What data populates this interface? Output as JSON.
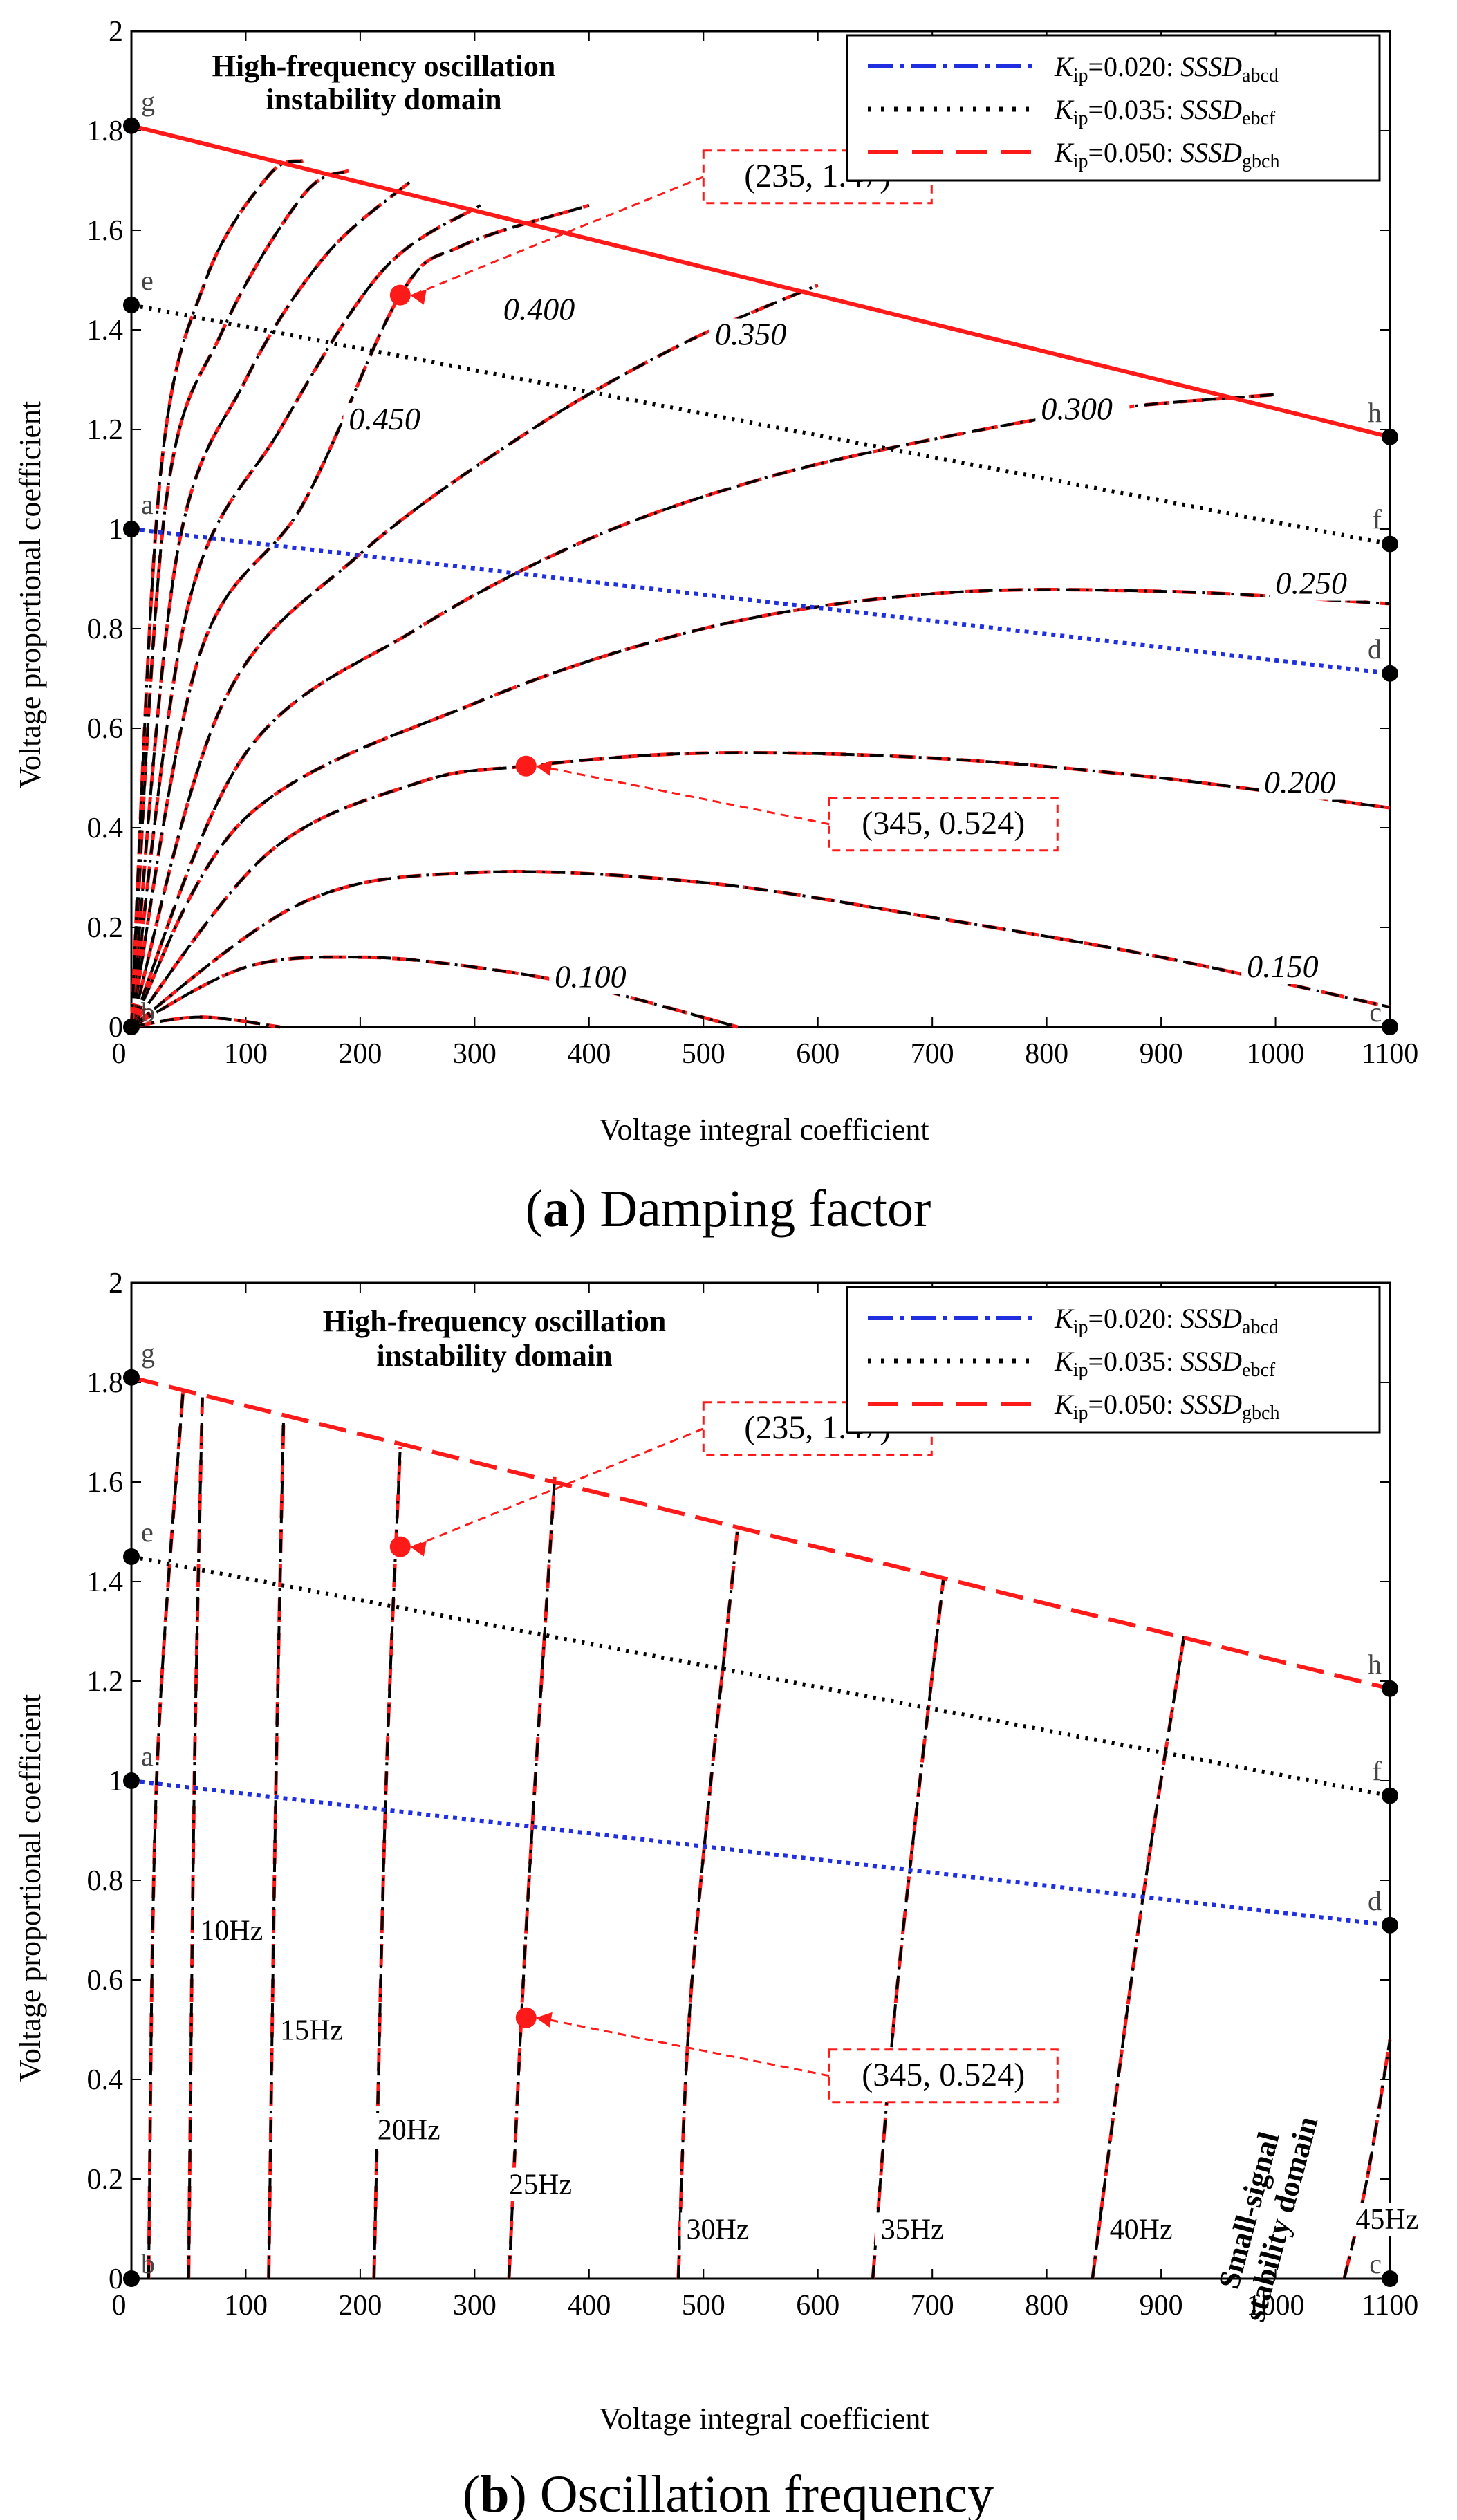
{
  "colors": {
    "blue": "#1f2fe0",
    "black": "#000000",
    "red": "#ff1a1a"
  },
  "chart_data": [
    {
      "type": "line",
      "panel": "a",
      "caption_letter": "a",
      "caption_text": " Damping factor",
      "xlabel": "Voltage integral coefficient",
      "ylabel": "Voltage proportional coefficient",
      "xlim": [
        0,
        1100
      ],
      "ylim": [
        0,
        2
      ],
      "x_ticks": [
        "0",
        "100",
        "200",
        "300",
        "400",
        "500",
        "600",
        "700",
        "800",
        "900",
        "1000",
        "1100"
      ],
      "y_ticks": [
        "0",
        "0.2",
        "0.4",
        "0.6",
        "0.8",
        "1",
        "1.2",
        "1.4",
        "1.6",
        "1.8",
        "2"
      ],
      "region_label_line1": "High-frequency oscillation",
      "region_label_line2": "instability domain",
      "legend": [
        {
          "k_label": "K",
          "k_sub": "ip",
          "value": "=0.020: ",
          "ssd": "SSSD",
          "ssd_sub": "abcd",
          "style": "dashdot",
          "color": "blue"
        },
        {
          "k_label": "K",
          "k_sub": "ip",
          "value": "=0.035: ",
          "ssd": "SSSD",
          "ssd_sub": "ebcf",
          "style": "dotted",
          "color": "black"
        },
        {
          "k_label": "K",
          "k_sub": "ip",
          "value": "=0.050: ",
          "ssd": "SSSD",
          "ssd_sub": "gbch",
          "style": "dashed",
          "color": "red"
        }
      ],
      "boundaries": [
        {
          "name": "abcd",
          "color": "blue",
          "x": [
            0,
            1100
          ],
          "y": [
            1.0,
            0.71
          ]
        },
        {
          "name": "ebcf",
          "color": "black",
          "x": [
            0,
            1100
          ],
          "y": [
            1.45,
            0.97
          ]
        },
        {
          "name": "gbch",
          "color": "red",
          "x": [
            0,
            1100
          ],
          "y": [
            1.81,
            1.185
          ]
        }
      ],
      "corner_points": [
        {
          "label": "a",
          "x": 0,
          "y": 1.0
        },
        {
          "label": "b",
          "x": 0,
          "y": 0
        },
        {
          "label": "c",
          "x": 1100,
          "y": 0
        },
        {
          "label": "d",
          "x": 1100,
          "y": 0.71
        },
        {
          "label": "e",
          "x": 0,
          "y": 1.45
        },
        {
          "label": "f",
          "x": 1100,
          "y": 0.97
        },
        {
          "label": "g",
          "x": 0,
          "y": 1.81
        },
        {
          "label": "h",
          "x": 1100,
          "y": 1.185
        }
      ],
      "contours": [
        {
          "level": "0.100",
          "label_at": [
            370,
            0.08
          ],
          "points": [
            [
              0,
              0
            ],
            [
              100,
              0.12
            ],
            [
              200,
              0.14
            ],
            [
              300,
              0.12
            ],
            [
              400,
              0.08
            ],
            [
              530,
              0
            ]
          ]
        },
        {
          "level": "0.150",
          "label_at": [
            975,
            0.1
          ],
          "points": [
            [
              0,
              0
            ],
            [
              150,
              0.25
            ],
            [
              300,
              0.31
            ],
            [
              500,
              0.29
            ],
            [
              700,
              0.22
            ],
            [
              900,
              0.14
            ],
            [
              1100,
              0.04
            ]
          ]
        },
        {
          "level": "0.200",
          "label_at": [
            990,
            0.47
          ],
          "points": [
            [
              0,
              0
            ],
            [
              120,
              0.35
            ],
            [
              250,
              0.49
            ],
            [
              345,
              0.524
            ],
            [
              500,
              0.55
            ],
            [
              700,
              0.54
            ],
            [
              900,
              0.5
            ],
            [
              1100,
              0.44
            ]
          ]
        },
        {
          "level": "0.250",
          "label_at": [
            1000,
            0.87
          ],
          "points": [
            [
              0,
              0
            ],
            [
              100,
              0.42
            ],
            [
              300,
              0.65
            ],
            [
              500,
              0.8
            ],
            [
              700,
              0.87
            ],
            [
              900,
              0.875
            ],
            [
              1100,
              0.85
            ]
          ]
        },
        {
          "level": "0.300",
          "label_at": [
            795,
            1.22
          ],
          "points": [
            [
              0,
              0
            ],
            [
              100,
              0.55
            ],
            [
              250,
              0.8
            ],
            [
              400,
              0.98
            ],
            [
              550,
              1.1
            ],
            [
              700,
              1.18
            ],
            [
              850,
              1.24
            ],
            [
              1000,
              1.27
            ]
          ]
        },
        {
          "level": "0.350",
          "label_at": [
            510,
            1.37
          ],
          "points": [
            [
              0,
              0
            ],
            [
              80,
              0.65
            ],
            [
              200,
              0.95
            ],
            [
              350,
              1.2
            ],
            [
              480,
              1.37
            ],
            [
              600,
              1.49
            ]
          ]
        },
        {
          "level": "0.400",
          "label_at": [
            325,
            1.42
          ],
          "points": [
            [
              0,
              0
            ],
            [
              60,
              0.75
            ],
            [
              150,
              1.05
            ],
            [
              235,
              1.47
            ],
            [
              290,
              1.57
            ],
            [
              400,
              1.65
            ]
          ]
        },
        {
          "level": "0.450",
          "label_at": [
            190,
            1.2
          ],
          "points": [
            [
              0,
              0
            ],
            [
              50,
              0.85
            ],
            [
              130,
              1.2
            ],
            [
              220,
              1.52
            ],
            [
              305,
              1.65
            ]
          ]
        },
        {
          "level": "",
          "label_at": null,
          "points": [
            [
              0,
              0
            ],
            [
              40,
              0.95
            ],
            [
              100,
              1.3
            ],
            [
              170,
              1.55
            ],
            [
              245,
              1.7
            ]
          ]
        },
        {
          "level": "",
          "label_at": null,
          "points": [
            [
              0,
              0
            ],
            [
              30,
              1.05
            ],
            [
              80,
              1.4
            ],
            [
              150,
              1.67
            ],
            [
              190,
              1.72
            ]
          ]
        },
        {
          "level": "",
          "label_at": null,
          "points": [
            [
              0,
              0
            ],
            [
              25,
              1.1
            ],
            [
              65,
              1.5
            ],
            [
              120,
              1.71
            ],
            [
              150,
              1.74
            ]
          ]
        },
        {
          "level": "",
          "label_at": null,
          "points": [
            [
              0,
              0
            ],
            [
              60,
              0.02
            ],
            [
              130,
              0
            ]
          ]
        }
      ],
      "highlight_points": [
        {
          "label": "(235, 1.47)",
          "x": 235,
          "y": 1.47,
          "box_x": 500,
          "box_y": 1.76
        },
        {
          "label": "(345, 0.524)",
          "x": 345,
          "y": 0.524,
          "box_x": 610,
          "box_y": 0.46
        }
      ]
    },
    {
      "type": "line",
      "panel": "b",
      "caption_letter": "b",
      "caption_text": " Oscillation frequency",
      "xlabel": "Voltage integral coefficient",
      "ylabel": "Voltage proportional coefficient",
      "xlim": [
        0,
        1100
      ],
      "ylim": [
        0,
        2
      ],
      "x_ticks": [
        "0",
        "100",
        "200",
        "300",
        "400",
        "500",
        "600",
        "700",
        "800",
        "900",
        "1000",
        "1100"
      ],
      "y_ticks": [
        "0",
        "0.2",
        "0.4",
        "0.6",
        "0.8",
        "1",
        "1.2",
        "1.4",
        "1.6",
        "1.8",
        "2"
      ],
      "region_label_line1": "High-frequency oscillation",
      "region_label_line2": "instability domain",
      "stable_label_line1": "Small-signal",
      "stable_label_line2": "stability domain",
      "legend": [
        {
          "k_label": "K",
          "k_sub": "ip",
          "value": "=0.020: ",
          "ssd": "SSSD",
          "ssd_sub": "abcd",
          "style": "dashdot",
          "color": "blue"
        },
        {
          "k_label": "K",
          "k_sub": "ip",
          "value": "=0.035: ",
          "ssd": "SSSD",
          "ssd_sub": "ebcf",
          "style": "dotted",
          "color": "black"
        },
        {
          "k_label": "K",
          "k_sub": "ip",
          "value": "=0.050: ",
          "ssd": "SSSD",
          "ssd_sub": "gbch",
          "style": "dashed",
          "color": "red"
        }
      ],
      "boundaries": [
        {
          "name": "abcd",
          "color": "blue",
          "x": [
            0,
            1100
          ],
          "y": [
            1.0,
            0.71
          ]
        },
        {
          "name": "ebcf",
          "color": "black",
          "x": [
            0,
            1100
          ],
          "y": [
            1.45,
            0.97
          ]
        },
        {
          "name": "gbch",
          "color": "red",
          "x": [
            0,
            1100
          ],
          "y": [
            1.81,
            1.185
          ]
        }
      ],
      "corner_points": [
        {
          "label": "a",
          "x": 0,
          "y": 1.0
        },
        {
          "label": "b",
          "x": 0,
          "y": 0
        },
        {
          "label": "c",
          "x": 1100,
          "y": 0
        },
        {
          "label": "d",
          "x": 1100,
          "y": 0.71
        },
        {
          "label": "e",
          "x": 0,
          "y": 1.45
        },
        {
          "label": "f",
          "x": 1100,
          "y": 0.97
        },
        {
          "label": "g",
          "x": 0,
          "y": 1.81
        },
        {
          "label": "h",
          "x": 1100,
          "y": 1.185
        }
      ],
      "contours": [
        {
          "level": "",
          "label_at": null,
          "points": [
            [
              15,
              0
            ],
            [
              22,
              1.0
            ],
            [
              45,
              1.78
            ]
          ]
        },
        {
          "level": "10Hz",
          "label_at": [
            60,
            0.68
          ],
          "points": [
            [
              50,
              0
            ],
            [
              55,
              1.0
            ],
            [
              62,
              1.77
            ]
          ]
        },
        {
          "level": "15Hz",
          "label_at": [
            130,
            0.48
          ],
          "points": [
            [
              120,
              0
            ],
            [
              126,
              0.95
            ],
            [
              133,
              1.73
            ]
          ]
        },
        {
          "level": "20Hz",
          "label_at": [
            215,
            0.28
          ],
          "points": [
            [
              212,
              0
            ],
            [
              222,
              0.95
            ],
            [
              235,
              1.67
            ]
          ]
        },
        {
          "level": "25Hz",
          "label_at": [
            330,
            0.17
          ],
          "points": [
            [
              330,
              0
            ],
            [
              345,
              0.7
            ],
            [
              370,
              1.61
            ]
          ]
        },
        {
          "level": "30Hz",
          "label_at": [
            485,
            0.08
          ],
          "points": [
            [
              478,
              0
            ],
            [
              490,
              0.6
            ],
            [
              530,
              1.51
            ]
          ]
        },
        {
          "level": "35Hz",
          "label_at": [
            655,
            0.08
          ],
          "points": [
            [
              648,
              0
            ],
            [
              670,
              0.6
            ],
            [
              710,
              1.41
            ]
          ]
        },
        {
          "level": "40Hz",
          "label_at": [
            855,
            0.08
          ],
          "points": [
            [
              840,
              0
            ],
            [
              880,
              0.7
            ],
            [
              920,
              1.29
            ]
          ]
        },
        {
          "level": "45Hz",
          "label_at": [
            1070,
            0.1
          ],
          "points": [
            [
              1060,
              0
            ],
            [
              1080,
              0.2
            ],
            [
              1100,
              0.48
            ]
          ]
        }
      ],
      "highlight_points": [
        {
          "label": "(235, 1.47)",
          "x": 235,
          "y": 1.47,
          "box_x": 500,
          "box_y": 1.76
        },
        {
          "label": "(345, 0.524)",
          "x": 345,
          "y": 0.524,
          "box_x": 610,
          "box_y": 0.46
        }
      ]
    }
  ]
}
